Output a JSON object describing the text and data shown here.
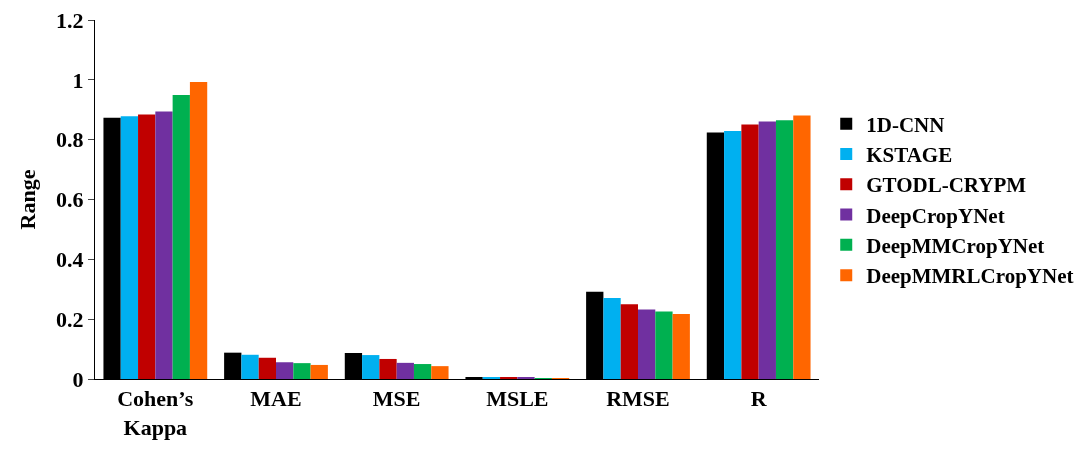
{
  "chart_data": {
    "type": "bar",
    "ylabel": "Range",
    "categories": [
      "Cohen’s Kappa",
      "MAE",
      "MSE",
      "MSLE",
      "RMSE",
      "R"
    ],
    "series": [
      {
        "name": "1D-CNN",
        "color": "#000000",
        "values": [
          0.873,
          0.088,
          0.087,
          0.006,
          0.292,
          0.824
        ]
      },
      {
        "name": "KSTAGE",
        "color": "#00b0f0",
        "values": [
          0.878,
          0.081,
          0.08,
          0.005,
          0.271,
          0.829
        ]
      },
      {
        "name": "GTODL-CRYPM",
        "color": "#c00000",
        "values": [
          0.884,
          0.071,
          0.067,
          0.005,
          0.25,
          0.851
        ]
      },
      {
        "name": "DeepCropYNet",
        "color": "#7030a0",
        "values": [
          0.894,
          0.056,
          0.054,
          0.004,
          0.232,
          0.861
        ]
      },
      {
        "name": "DeepMMCropYNet",
        "color": "#00b050",
        "values": [
          0.949,
          0.053,
          0.05,
          0.003,
          0.226,
          0.865
        ]
      },
      {
        "name": "DeepMMRLCropYNet",
        "color": "#ff6600",
        "values": [
          0.993,
          0.047,
          0.043,
          0.002,
          0.217,
          0.881
        ]
      }
    ],
    "ylim": [
      0,
      1.2
    ],
    "yticks": [
      0,
      0.2,
      0.4,
      0.6,
      0.8,
      1,
      1.2
    ],
    "grid": false,
    "legend": "right"
  }
}
